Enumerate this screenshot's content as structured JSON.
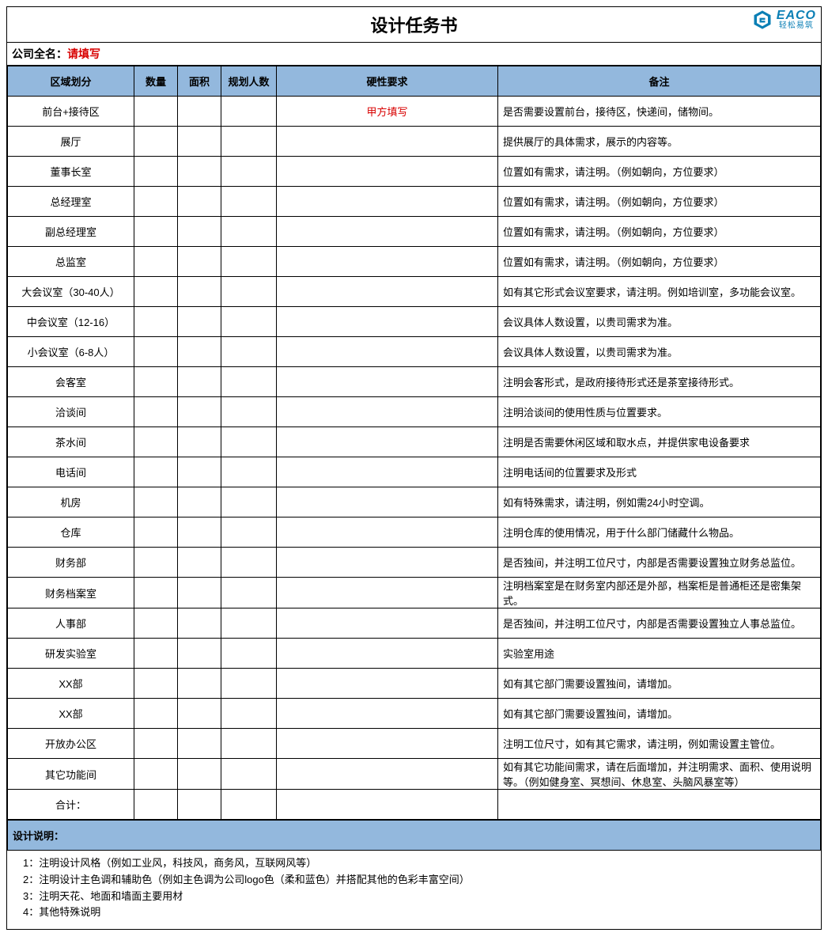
{
  "title": "设计任务书",
  "logo": {
    "main": "EACO",
    "sub": "轻松易筑"
  },
  "company": {
    "label": "公司全名：",
    "value": "请填写"
  },
  "columns": {
    "zone": "区域划分",
    "qty": "数量",
    "area": "面积",
    "ppl": "规划人数",
    "req": "硬性要求",
    "note": "备注"
  },
  "rows": [
    {
      "zone": "前台+接待区",
      "req": "甲方填写",
      "req_red": true,
      "note": "是否需要设置前台，接待区，快递间，储物间。"
    },
    {
      "zone": "展厅",
      "note": "提供展厅的具体需求，展示的内容等。"
    },
    {
      "zone": "董事长室",
      "note": "位置如有需求，请注明。（例如朝向，方位要求）"
    },
    {
      "zone": "总经理室",
      "note": "位置如有需求，请注明。（例如朝向，方位要求）"
    },
    {
      "zone": "副总经理室",
      "note": "位置如有需求，请注明。（例如朝向，方位要求）"
    },
    {
      "zone": "总监室",
      "note": "位置如有需求，请注明。（例如朝向，方位要求）"
    },
    {
      "zone": "大会议室（30-40人）",
      "note": "如有其它形式会议室要求，请注明。例如培训室，多功能会议室。",
      "tall": true
    },
    {
      "zone": "中会议室（12-16）",
      "note": "会议具体人数设置，以贵司需求为准。"
    },
    {
      "zone": "小会议室（6-8人）",
      "note": "会议具体人数设置，以贵司需求为准。"
    },
    {
      "zone": "会客室",
      "note": "注明会客形式，是政府接待形式还是茶室接待形式。"
    },
    {
      "zone": "洽谈间",
      "note": "注明洽谈间的使用性质与位置要求。"
    },
    {
      "zone": "茶水间",
      "note": "注明是否需要休闲区域和取水点，并提供家电设备要求"
    },
    {
      "zone": "电话间",
      "note": "注明电话间的位置要求及形式"
    },
    {
      "zone": "机房",
      "note": "如有特殊需求，请注明，例如需24小时空调。"
    },
    {
      "zone": "仓库",
      "note": "注明仓库的使用情况，用于什么部门储藏什么物品。"
    },
    {
      "zone": "财务部",
      "note": "是否独间，并注明工位尺寸，内部是否需要设置独立财务总监位。",
      "tall": true
    },
    {
      "zone": "财务档案室",
      "note": "注明档案室是在财务室内部还是外部，档案柜是普通柜还是密集架式。",
      "tall": true
    },
    {
      "zone": "人事部",
      "note": "是否独间，并注明工位尺寸，内部是否需要设置独立人事总监位。",
      "tall": true
    },
    {
      "zone": "研发实验室",
      "note": "实验室用途"
    },
    {
      "zone": "XX部",
      "note": "如有其它部门需要设置独间，请增加。"
    },
    {
      "zone": "XX部",
      "note": "如有其它部门需要设置独间，请增加。"
    },
    {
      "zone": "开放办公区",
      "note": "注明工位尺寸，如有其它需求，请注明，例如需设置主管位。"
    },
    {
      "zone": "其它功能间",
      "note": "如有其它功能间需求，请在后面增加，并注明需求、面积、使用说明等。（例如健身室、冥想间、休息室、头脑风暴室等）",
      "tall": true
    },
    {
      "zone": "合计：",
      "note": ""
    }
  ],
  "design_header": "设计说明：",
  "design_notes": [
    "1：注明设计风格（例如工业风，科技风，商务风，互联网风等）",
    "2：注明设计主色调和辅助色（例如主色调为公司logo色（柔和蓝色）并搭配其他的色彩丰富空间）",
    "3：注明天花、地面和墙面主要用材",
    "4：其他特殊说明"
  ],
  "colors": {
    "header_bg": "#93b8dd",
    "border": "#000000",
    "red": "#d80000",
    "logo": "#0b7fb5"
  }
}
